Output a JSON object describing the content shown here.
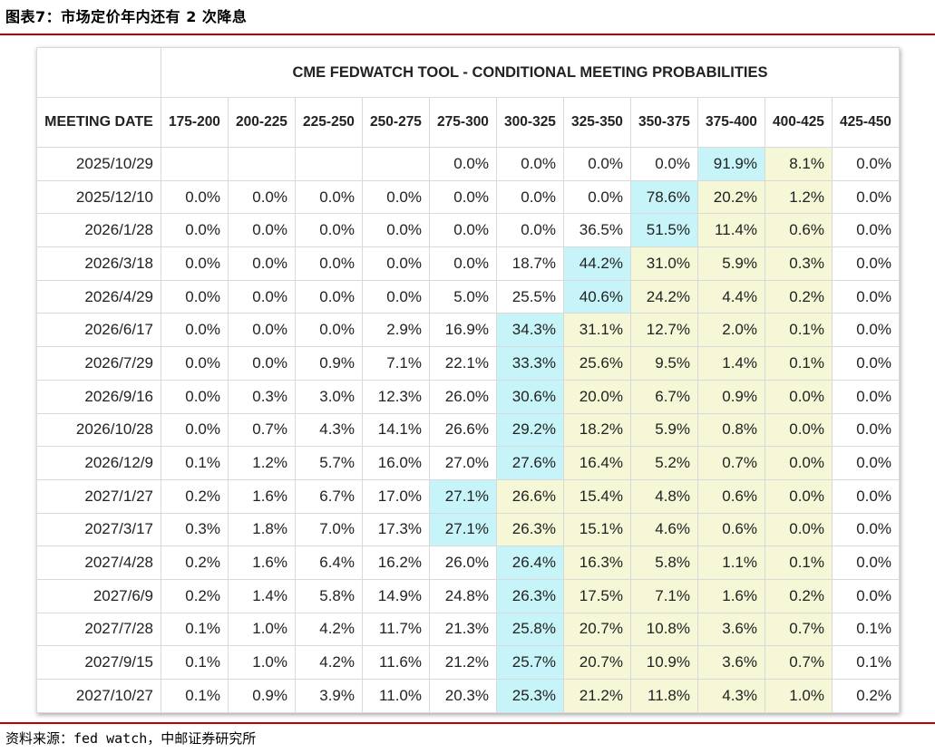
{
  "title": "图表7：市场定价年内还有 2 次降息",
  "source": "资料来源：fed watch，中邮证券研究所",
  "colors": {
    "rule": "#c00000",
    "max_cell": "#c7f4f9",
    "lower_rate_cell": "#f5f7d6"
  },
  "chart_data": {
    "type": "table",
    "title": "CME FEDWATCH TOOL - CONDITIONAL MEETING PROBABILITIES",
    "row_header": "MEETING DATE",
    "columns": [
      "175-200",
      "200-225",
      "225-250",
      "250-275",
      "275-300",
      "300-325",
      "325-350",
      "350-375",
      "375-400",
      "400-425",
      "425-450"
    ],
    "rows": [
      {
        "date": "2025/10/29",
        "values": [
          "",
          "",
          "",
          "",
          "0.0%",
          "0.0%",
          "0.0%",
          "0.0%",
          "91.9%",
          "8.1%",
          "0.0%"
        ]
      },
      {
        "date": "2025/12/10",
        "values": [
          "0.0%",
          "0.0%",
          "0.0%",
          "0.0%",
          "0.0%",
          "0.0%",
          "0.0%",
          "78.6%",
          "20.2%",
          "1.2%",
          "0.0%"
        ]
      },
      {
        "date": "2026/1/28",
        "values": [
          "0.0%",
          "0.0%",
          "0.0%",
          "0.0%",
          "0.0%",
          "0.0%",
          "36.5%",
          "51.5%",
          "11.4%",
          "0.6%",
          "0.0%"
        ]
      },
      {
        "date": "2026/3/18",
        "values": [
          "0.0%",
          "0.0%",
          "0.0%",
          "0.0%",
          "0.0%",
          "18.7%",
          "44.2%",
          "31.0%",
          "5.9%",
          "0.3%",
          "0.0%"
        ]
      },
      {
        "date": "2026/4/29",
        "values": [
          "0.0%",
          "0.0%",
          "0.0%",
          "0.0%",
          "5.0%",
          "25.5%",
          "40.6%",
          "24.2%",
          "4.4%",
          "0.2%",
          "0.0%"
        ]
      },
      {
        "date": "2026/6/17",
        "values": [
          "0.0%",
          "0.0%",
          "0.0%",
          "2.9%",
          "16.9%",
          "34.3%",
          "31.1%",
          "12.7%",
          "2.0%",
          "0.1%",
          "0.0%"
        ]
      },
      {
        "date": "2026/7/29",
        "values": [
          "0.0%",
          "0.0%",
          "0.9%",
          "7.1%",
          "22.1%",
          "33.3%",
          "25.6%",
          "9.5%",
          "1.4%",
          "0.1%",
          "0.0%"
        ]
      },
      {
        "date": "2026/9/16",
        "values": [
          "0.0%",
          "0.3%",
          "3.0%",
          "12.3%",
          "26.0%",
          "30.6%",
          "20.0%",
          "6.7%",
          "0.9%",
          "0.0%",
          "0.0%"
        ]
      },
      {
        "date": "2026/10/28",
        "values": [
          "0.0%",
          "0.7%",
          "4.3%",
          "14.1%",
          "26.6%",
          "29.2%",
          "18.2%",
          "5.9%",
          "0.8%",
          "0.0%",
          "0.0%"
        ]
      },
      {
        "date": "2026/12/9",
        "values": [
          "0.1%",
          "1.2%",
          "5.7%",
          "16.0%",
          "27.0%",
          "27.6%",
          "16.4%",
          "5.2%",
          "0.7%",
          "0.0%",
          "0.0%"
        ]
      },
      {
        "date": "2027/1/27",
        "values": [
          "0.2%",
          "1.6%",
          "6.7%",
          "17.0%",
          "27.1%",
          "26.6%",
          "15.4%",
          "4.8%",
          "0.6%",
          "0.0%",
          "0.0%"
        ]
      },
      {
        "date": "2027/3/17",
        "values": [
          "0.3%",
          "1.8%",
          "7.0%",
          "17.3%",
          "27.1%",
          "26.3%",
          "15.1%",
          "4.6%",
          "0.6%",
          "0.0%",
          "0.0%"
        ]
      },
      {
        "date": "2027/4/28",
        "values": [
          "0.2%",
          "1.6%",
          "6.4%",
          "16.2%",
          "26.0%",
          "26.4%",
          "16.3%",
          "5.8%",
          "1.1%",
          "0.1%",
          "0.0%"
        ]
      },
      {
        "date": "2027/6/9",
        "values": [
          "0.2%",
          "1.4%",
          "5.8%",
          "14.9%",
          "24.8%",
          "26.3%",
          "17.5%",
          "7.1%",
          "1.6%",
          "0.2%",
          "0.0%"
        ]
      },
      {
        "date": "2027/7/28",
        "values": [
          "0.1%",
          "1.0%",
          "4.2%",
          "11.7%",
          "21.3%",
          "25.8%",
          "20.7%",
          "10.8%",
          "3.6%",
          "0.7%",
          "0.1%"
        ]
      },
      {
        "date": "2027/9/15",
        "values": [
          "0.1%",
          "1.0%",
          "4.2%",
          "11.6%",
          "21.2%",
          "25.7%",
          "20.7%",
          "10.9%",
          "3.6%",
          "0.7%",
          "0.1%"
        ]
      },
      {
        "date": "2027/10/27",
        "values": [
          "0.1%",
          "0.9%",
          "3.9%",
          "11.0%",
          "20.3%",
          "25.3%",
          "21.2%",
          "11.8%",
          "4.3%",
          "1.0%",
          "0.2%"
        ]
      }
    ],
    "highlight": {
      "max_col": [
        8,
        7,
        7,
        6,
        6,
        5,
        5,
        5,
        5,
        5,
        4,
        4,
        5,
        5,
        5,
        5,
        5
      ],
      "yellow_from": [
        9,
        8,
        8,
        7,
        7,
        6,
        6,
        6,
        6,
        6,
        5,
        5,
        6,
        6,
        6,
        6,
        6
      ]
    }
  }
}
